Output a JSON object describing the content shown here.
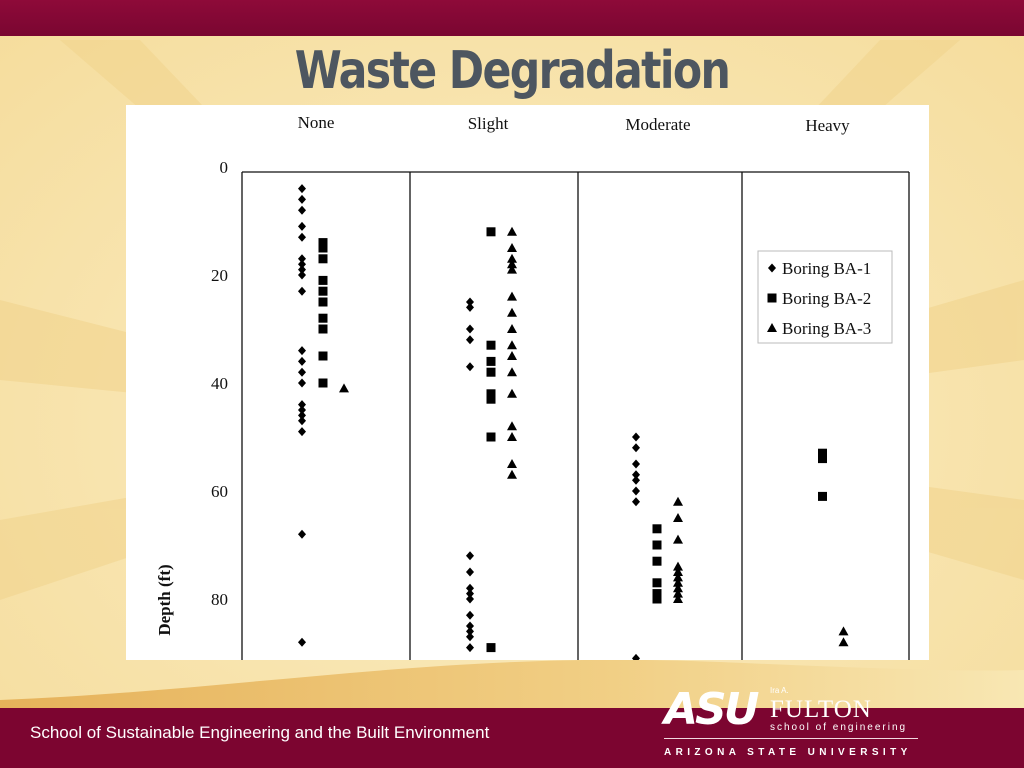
{
  "slide": {
    "title": "Waste Degradation",
    "footer_text": "School of Sustainable Engineering and the Built Environment",
    "colors": {
      "top_bar": "#8e0a39",
      "footer": "#7c0530",
      "background": "#f8e7b3",
      "title": "#4d5660"
    }
  },
  "logo": {
    "asu": "ASU",
    "ira": "Ira A.",
    "fulton": "FULTON",
    "school": "school of engineering",
    "university": "ARIZONA STATE UNIVERSITY"
  },
  "chart_data": {
    "type": "scatter",
    "title": "",
    "categories": [
      "None",
      "Slight",
      "Moderate",
      "Heavy"
    ],
    "ylabel": "Depth (ft)",
    "ylim": [
      0,
      90
    ],
    "y_inverted": true,
    "y_ticks": [
      "0",
      "20",
      "40",
      "60",
      "80"
    ],
    "legend_position": "top-right (inside Heavy panel)",
    "series": [
      {
        "name": "Boring BA-1",
        "marker": "diamond",
        "points": [
          {
            "category": "None",
            "depth": 4
          },
          {
            "category": "None",
            "depth": 6
          },
          {
            "category": "None",
            "depth": 8
          },
          {
            "category": "None",
            "depth": 11
          },
          {
            "category": "None",
            "depth": 13
          },
          {
            "category": "None",
            "depth": 17
          },
          {
            "category": "None",
            "depth": 18
          },
          {
            "category": "None",
            "depth": 19
          },
          {
            "category": "None",
            "depth": 20
          },
          {
            "category": "None",
            "depth": 23
          },
          {
            "category": "None",
            "depth": 34
          },
          {
            "category": "None",
            "depth": 36
          },
          {
            "category": "None",
            "depth": 38
          },
          {
            "category": "None",
            "depth": 40
          },
          {
            "category": "None",
            "depth": 44
          },
          {
            "category": "None",
            "depth": 45
          },
          {
            "category": "None",
            "depth": 46
          },
          {
            "category": "None",
            "depth": 47
          },
          {
            "category": "None",
            "depth": 49
          },
          {
            "category": "None",
            "depth": 68
          },
          {
            "category": "None",
            "depth": 88
          },
          {
            "category": "Slight",
            "depth": 25
          },
          {
            "category": "Slight",
            "depth": 26
          },
          {
            "category": "Slight",
            "depth": 30
          },
          {
            "category": "Slight",
            "depth": 32
          },
          {
            "category": "Slight",
            "depth": 37
          },
          {
            "category": "Slight",
            "depth": 72
          },
          {
            "category": "Slight",
            "depth": 75
          },
          {
            "category": "Slight",
            "depth": 78
          },
          {
            "category": "Slight",
            "depth": 79
          },
          {
            "category": "Slight",
            "depth": 80
          },
          {
            "category": "Slight",
            "depth": 83
          },
          {
            "category": "Slight",
            "depth": 85
          },
          {
            "category": "Slight",
            "depth": 86
          },
          {
            "category": "Slight",
            "depth": 87
          },
          {
            "category": "Slight",
            "depth": 89
          },
          {
            "category": "Moderate",
            "depth": 50
          },
          {
            "category": "Moderate",
            "depth": 52
          },
          {
            "category": "Moderate",
            "depth": 55
          },
          {
            "category": "Moderate",
            "depth": 57
          },
          {
            "category": "Moderate",
            "depth": 58
          },
          {
            "category": "Moderate",
            "depth": 60
          },
          {
            "category": "Moderate",
            "depth": 62
          },
          {
            "category": "Moderate",
            "depth": 91
          }
        ]
      },
      {
        "name": "Boring BA-2",
        "marker": "square",
        "points": [
          {
            "category": "None",
            "depth": 14
          },
          {
            "category": "None",
            "depth": 15
          },
          {
            "category": "None",
            "depth": 17
          },
          {
            "category": "None",
            "depth": 21
          },
          {
            "category": "None",
            "depth": 23
          },
          {
            "category": "None",
            "depth": 25
          },
          {
            "category": "None",
            "depth": 28
          },
          {
            "category": "None",
            "depth": 30
          },
          {
            "category": "None",
            "depth": 35
          },
          {
            "category": "None",
            "depth": 40
          },
          {
            "category": "Slight",
            "depth": 12
          },
          {
            "category": "Slight",
            "depth": 33
          },
          {
            "category": "Slight",
            "depth": 36
          },
          {
            "category": "Slight",
            "depth": 38
          },
          {
            "category": "Slight",
            "depth": 42
          },
          {
            "category": "Slight",
            "depth": 43
          },
          {
            "category": "Slight",
            "depth": 50
          },
          {
            "category": "Slight",
            "depth": 89
          },
          {
            "category": "Moderate",
            "depth": 67
          },
          {
            "category": "Moderate",
            "depth": 70
          },
          {
            "category": "Moderate",
            "depth": 73
          },
          {
            "category": "Moderate",
            "depth": 77
          },
          {
            "category": "Moderate",
            "depth": 79
          },
          {
            "category": "Moderate",
            "depth": 80
          },
          {
            "category": "Heavy",
            "depth": 53
          },
          {
            "category": "Heavy",
            "depth": 54
          },
          {
            "category": "Heavy",
            "depth": 61
          }
        ]
      },
      {
        "name": "Boring BA-3",
        "marker": "triangle",
        "points": [
          {
            "category": "None",
            "depth": 41
          },
          {
            "category": "Slight",
            "depth": 12
          },
          {
            "category": "Slight",
            "depth": 15
          },
          {
            "category": "Slight",
            "depth": 17
          },
          {
            "category": "Slight",
            "depth": 18
          },
          {
            "category": "Slight",
            "depth": 19
          },
          {
            "category": "Slight",
            "depth": 24
          },
          {
            "category": "Slight",
            "depth": 27
          },
          {
            "category": "Slight",
            "depth": 30
          },
          {
            "category": "Slight",
            "depth": 33
          },
          {
            "category": "Slight",
            "depth": 35
          },
          {
            "category": "Slight",
            "depth": 38
          },
          {
            "category": "Slight",
            "depth": 42
          },
          {
            "category": "Slight",
            "depth": 48
          },
          {
            "category": "Slight",
            "depth": 50
          },
          {
            "category": "Slight",
            "depth": 55
          },
          {
            "category": "Slight",
            "depth": 57
          },
          {
            "category": "Moderate",
            "depth": 62
          },
          {
            "category": "Moderate",
            "depth": 65
          },
          {
            "category": "Moderate",
            "depth": 69
          },
          {
            "category": "Moderate",
            "depth": 74
          },
          {
            "category": "Moderate",
            "depth": 75
          },
          {
            "category": "Moderate",
            "depth": 76
          },
          {
            "category": "Moderate",
            "depth": 77
          },
          {
            "category": "Moderate",
            "depth": 78
          },
          {
            "category": "Moderate",
            "depth": 79
          },
          {
            "category": "Moderate",
            "depth": 80
          },
          {
            "category": "Heavy",
            "depth": 86
          },
          {
            "category": "Heavy",
            "depth": 88
          }
        ]
      }
    ]
  }
}
